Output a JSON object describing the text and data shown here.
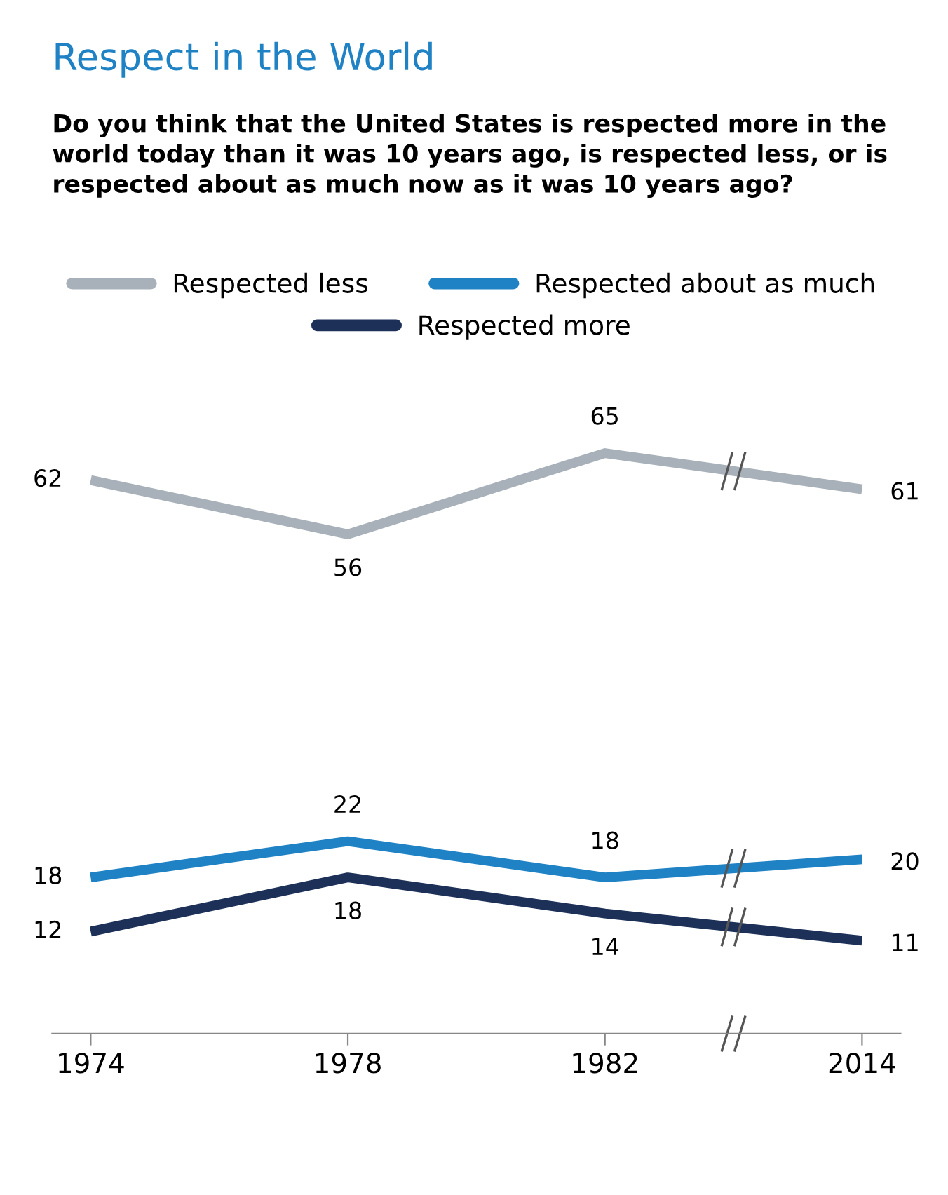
{
  "chart_data": {
    "type": "line",
    "title": "Respect in the World",
    "subtitle": "Do you think that the United States is respected more in the world today than it was 10 years ago, is respected less, or is respected about as much now as it was 10 years ago?",
    "categories": [
      "1974",
      "1978",
      "1982",
      "2014"
    ],
    "series": [
      {
        "name": "Respected less",
        "color": "#a8b1b9",
        "values": [
          62,
          56,
          65,
          61
        ]
      },
      {
        "name": "Respected about as much",
        "color": "#1f82c4",
        "values": [
          18,
          22,
          18,
          20
        ]
      },
      {
        "name": "Respected more",
        "color": "#1c3058",
        "values": [
          12,
          18,
          14,
          11
        ]
      }
    ],
    "data_labels": true,
    "legend": "top",
    "grid": false,
    "marker": "none",
    "line_style": "solid",
    "tick_labels": "x"
  }
}
